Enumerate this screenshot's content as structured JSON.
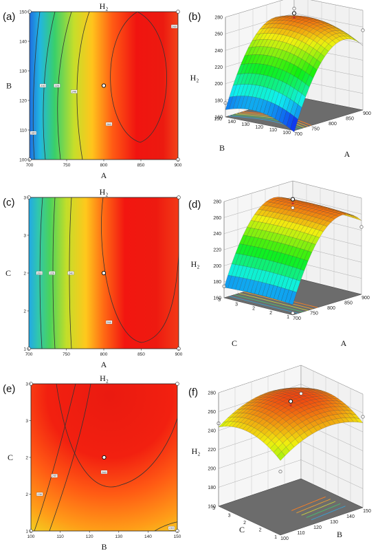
{
  "panel_labels": [
    "(a)",
    "(b)",
    "(c)",
    "(d)",
    "(e)",
    "(f)"
  ],
  "chart_data": [
    {
      "panel": "(a)",
      "type": "heatmap",
      "title": "H₂",
      "xlabel": "A",
      "ylabel": "B",
      "x_ticks": [
        "700",
        "750",
        "800",
        "850",
        "900"
      ],
      "y_ticks": [
        "100",
        "110",
        "120",
        "130",
        "140",
        "150"
      ],
      "xlim": [
        700,
        900
      ],
      "ylim": [
        100,
        150
      ],
      "contour_labels": [
        {
          "text": "180",
          "x": 705,
          "y": 109
        },
        {
          "text": "200",
          "x": 718,
          "y": 125
        },
        {
          "text": "220",
          "x": 737,
          "y": 125
        },
        {
          "text": "240",
          "x": 760,
          "y": 123
        },
        {
          "text": "260",
          "x": 807,
          "y": 112
        },
        {
          "text": "260",
          "x": 895,
          "y": 145
        }
      ],
      "center_point": {
        "x": 800,
        "y": 125
      },
      "corner_points": [
        [
          700,
          100
        ],
        [
          900,
          100
        ],
        [
          700,
          150
        ],
        [
          900,
          150
        ]
      ]
    },
    {
      "panel": "(b)",
      "type": "surface",
      "zlabel": "H₂",
      "xlabel": "A",
      "ylabel": "B",
      "z_ticks": [
        "160",
        "180",
        "200",
        "220",
        "240",
        "260",
        "280"
      ],
      "x_ticks": [
        "700",
        "750",
        "800",
        "850",
        "900"
      ],
      "y_ticks": [
        "100",
        "110",
        "120",
        "130",
        "140",
        "150"
      ],
      "zlim": [
        160,
        280
      ]
    },
    {
      "panel": "(c)",
      "type": "heatmap",
      "title": "H₂",
      "xlabel": "A",
      "ylabel": "C",
      "x_ticks": [
        "700",
        "750",
        "800",
        "850",
        "900"
      ],
      "y_ticks": [
        "1",
        "2",
        "2",
        "3",
        "3"
      ],
      "xlim": [
        700,
        900
      ],
      "ylim": [
        1,
        3
      ],
      "contour_labels": [
        {
          "text": "200",
          "x": 714,
          "y": 2
        },
        {
          "text": "220",
          "x": 731,
          "y": 2
        },
        {
          "text": "240",
          "x": 756,
          "y": 2
        },
        {
          "text": "260",
          "x": 807,
          "y": 1.35
        }
      ],
      "center_point": {
        "x": 800,
        "y": 2
      },
      "corner_points": [
        [
          700,
          1
        ],
        [
          900,
          1
        ],
        [
          700,
          3
        ],
        [
          900,
          3
        ]
      ]
    },
    {
      "panel": "(d)",
      "type": "surface",
      "zlabel": "H₂",
      "xlabel": "A",
      "ylabel": "C",
      "z_ticks": [
        "160",
        "180",
        "200",
        "220",
        "240",
        "260",
        "280"
      ],
      "x_ticks": [
        "700",
        "750",
        "800",
        "850",
        "900"
      ],
      "y_ticks": [
        "1",
        "2",
        "2",
        "3",
        "3"
      ],
      "zlim": [
        160,
        280
      ]
    },
    {
      "panel": "(e)",
      "type": "heatmap",
      "title": "H₂",
      "xlabel": "B",
      "ylabel": "C",
      "x_ticks": [
        "100",
        "110",
        "120",
        "130",
        "140",
        "150"
      ],
      "y_ticks": [
        "1",
        "2",
        "2",
        "3",
        "3"
      ],
      "xlim": [
        100,
        150
      ],
      "ylim": [
        1,
        3
      ],
      "contour_labels": [
        {
          "text": "230",
          "x": 103,
          "y": 1.5
        },
        {
          "text": "240",
          "x": 108,
          "y": 1.75
        },
        {
          "text": "260",
          "x": 125,
          "y": 1.8
        },
        {
          "text": "240",
          "x": 148,
          "y": 1.04
        }
      ],
      "center_point": {
        "x": 125,
        "y": 2
      },
      "corner_points": [
        [
          100,
          1
        ],
        [
          150,
          1
        ],
        [
          100,
          3
        ],
        [
          150,
          3
        ]
      ]
    },
    {
      "panel": "(f)",
      "type": "surface",
      "zlabel": "H₂",
      "xlabel": "B",
      "ylabel": "C",
      "z_ticks": [
        "160",
        "180",
        "200",
        "220",
        "240",
        "260",
        "280"
      ],
      "x_ticks": [
        "100",
        "110",
        "120",
        "130",
        "140",
        "150"
      ],
      "y_ticks": [
        "1",
        "2",
        "2",
        "3",
        "3"
      ],
      "zlim": [
        160,
        280
      ]
    }
  ]
}
